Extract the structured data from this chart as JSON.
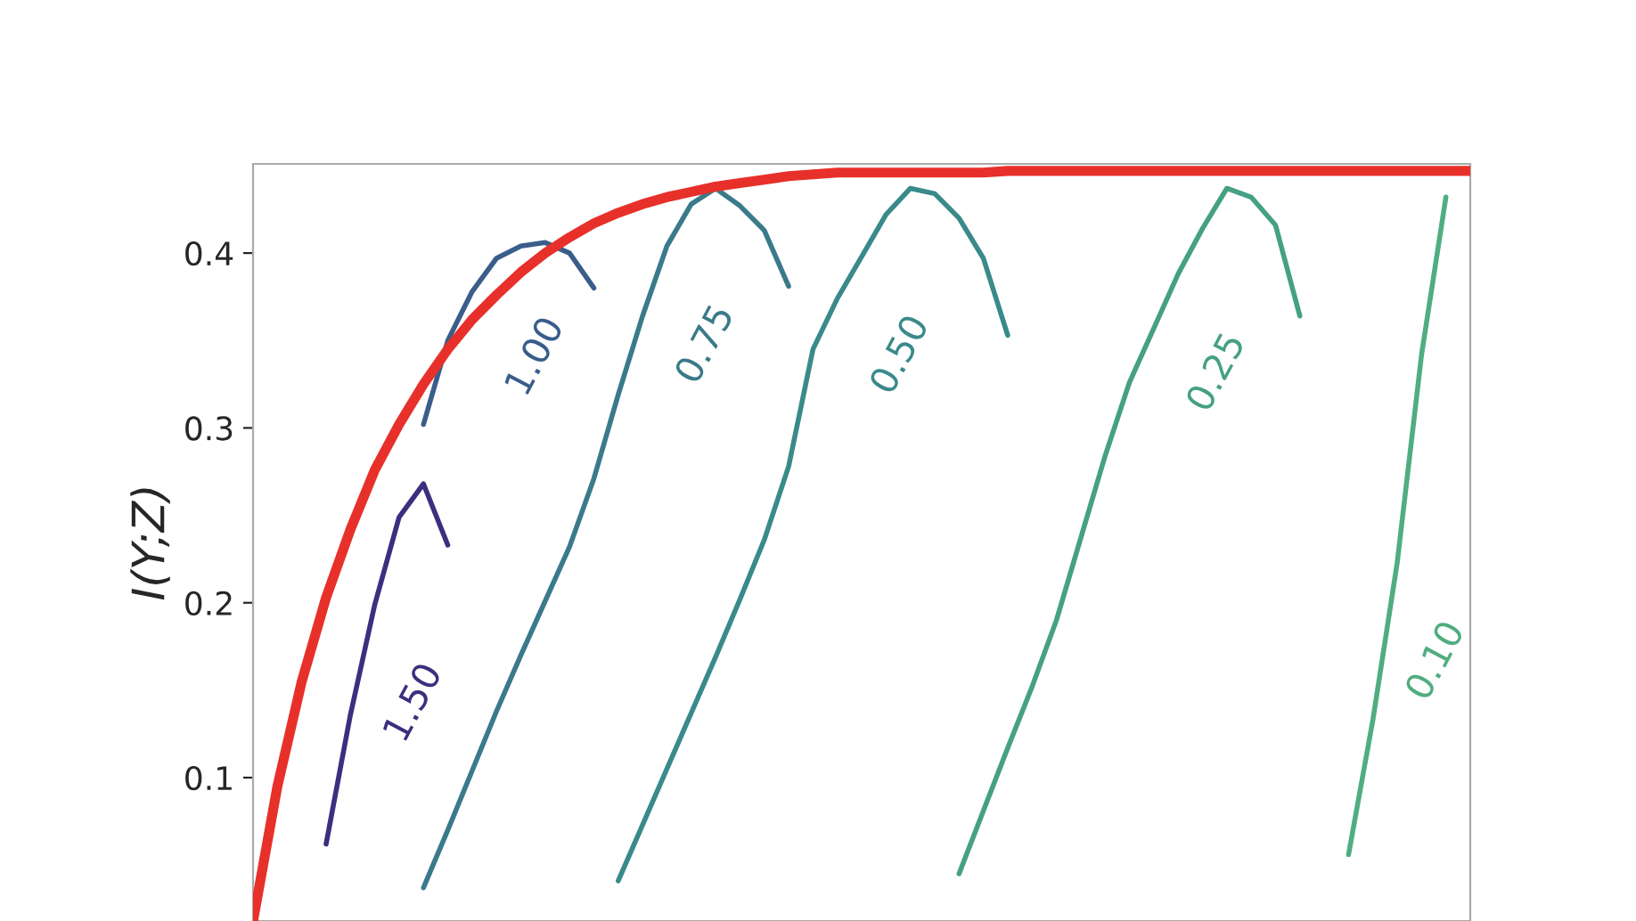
{
  "chart_data": {
    "type": "line",
    "ylabel": "I(Y;Z)",
    "ylim": [
      0.018,
      0.451
    ],
    "yticks": [
      0.1,
      0.2,
      0.3,
      0.4
    ],
    "tick_labels": "y",
    "grid": false,
    "legend": false,
    "marker": "none",
    "line_style": "solid",
    "categories": [
      null,
      null,
      null,
      null,
      null,
      null,
      null,
      null,
      null,
      null,
      null,
      null,
      null,
      null,
      null,
      null,
      null,
      null,
      null,
      null,
      null,
      null,
      null,
      null,
      null,
      null,
      null,
      null,
      null,
      null,
      null,
      null,
      null,
      null,
      null,
      null,
      null,
      null,
      null,
      null,
      null,
      null,
      null,
      null,
      null,
      null,
      null,
      null,
      null,
      null,
      null
    ],
    "series": [
      {
        "color": "#e8302a",
        "values": [
          0.018,
          0.095,
          0.155,
          0.203,
          0.242,
          0.276,
          0.302,
          0.325,
          0.345,
          0.362,
          0.376,
          0.389,
          0.4,
          0.409,
          0.417,
          0.423,
          0.428,
          0.432,
          0.435,
          0.438,
          0.44,
          0.442,
          0.444,
          0.445,
          0.446,
          0.446,
          0.446,
          0.446,
          0.446,
          0.446,
          0.446,
          0.447,
          0.447,
          0.447,
          0.447,
          0.447,
          0.447,
          0.447,
          0.447,
          0.447,
          0.447,
          0.447,
          0.447,
          0.447,
          0.447,
          0.447,
          0.447,
          0.447,
          0.447,
          0.447,
          0.447
        ]
      },
      {
        "name": "1.50",
        "color": "#3b2f7f",
        "values": [
          null,
          null,
          null,
          0.062,
          0.136,
          0.199,
          0.249,
          0.268,
          0.233,
          null,
          null,
          null,
          null,
          null,
          null,
          null,
          null,
          null,
          null,
          null,
          null,
          null,
          null,
          null,
          null,
          null,
          null,
          null,
          null,
          null,
          null,
          null,
          null,
          null,
          null,
          null,
          null,
          null,
          null,
          null,
          null,
          null,
          null,
          null,
          null,
          null,
          null,
          null,
          null,
          null,
          null
        ]
      },
      {
        "name": "1.00",
        "color": "#3a5d8a",
        "values": [
          null,
          null,
          null,
          null,
          null,
          null,
          null,
          0.302,
          0.35,
          0.378,
          0.397,
          0.404,
          0.406,
          0.4,
          0.38,
          null,
          null,
          null,
          null,
          null,
          null,
          null,
          null,
          null,
          null,
          null,
          null,
          null,
          null,
          null,
          null,
          null,
          null,
          null,
          null,
          null,
          null,
          null,
          null,
          null,
          null,
          null,
          null,
          null,
          null,
          null,
          null,
          null,
          null,
          null,
          null
        ]
      },
      {
        "name": "0.75",
        "color": "#3a7a8a",
        "values": [
          null,
          null,
          null,
          null,
          null,
          null,
          null,
          0.037,
          0.07,
          0.104,
          0.138,
          0.17,
          0.201,
          0.232,
          0.271,
          0.319,
          0.364,
          0.404,
          0.428,
          0.437,
          0.427,
          0.413,
          0.381,
          null,
          null,
          null,
          null,
          null,
          null,
          null,
          null,
          null,
          null,
          null,
          null,
          null,
          null,
          null,
          null,
          null,
          null,
          null,
          null,
          null,
          null,
          null,
          null,
          null,
          null,
          null,
          null
        ]
      },
      {
        "name": "0.50",
        "color": "#3a8a8a",
        "values": [
          null,
          null,
          null,
          null,
          null,
          null,
          null,
          null,
          null,
          null,
          null,
          null,
          null,
          null,
          null,
          0.041,
          0.073,
          0.105,
          0.137,
          0.169,
          0.202,
          0.236,
          0.278,
          0.345,
          0.374,
          0.398,
          0.422,
          0.437,
          0.434,
          0.42,
          0.397,
          0.353,
          null,
          null,
          null,
          null,
          null,
          null,
          null,
          null,
          null,
          null,
          null,
          null,
          null,
          null,
          null,
          null,
          null,
          null,
          null
        ]
      },
      {
        "name": "0.25",
        "color": "#45a085",
        "values": [
          null,
          null,
          null,
          null,
          null,
          null,
          null,
          null,
          null,
          null,
          null,
          null,
          null,
          null,
          null,
          null,
          null,
          null,
          null,
          null,
          null,
          null,
          null,
          null,
          null,
          null,
          null,
          null,
          null,
          0.045,
          0.081,
          0.117,
          0.152,
          0.19,
          0.237,
          0.284,
          0.326,
          0.357,
          0.388,
          0.414,
          0.437,
          0.432,
          0.416,
          0.364,
          null,
          null,
          null,
          null,
          null,
          null,
          null
        ]
      },
      {
        "name": "0.10",
        "color": "#50ad80",
        "values": [
          null,
          null,
          null,
          null,
          null,
          null,
          null,
          null,
          null,
          null,
          null,
          null,
          null,
          null,
          null,
          null,
          null,
          null,
          null,
          null,
          null,
          null,
          null,
          null,
          null,
          null,
          null,
          null,
          null,
          null,
          null,
          null,
          null,
          null,
          null,
          null,
          null,
          null,
          null,
          null,
          null,
          null,
          null,
          null,
          null,
          0.056,
          0.133,
          0.223,
          0.342,
          0.432,
          null
        ]
      }
    ]
  }
}
